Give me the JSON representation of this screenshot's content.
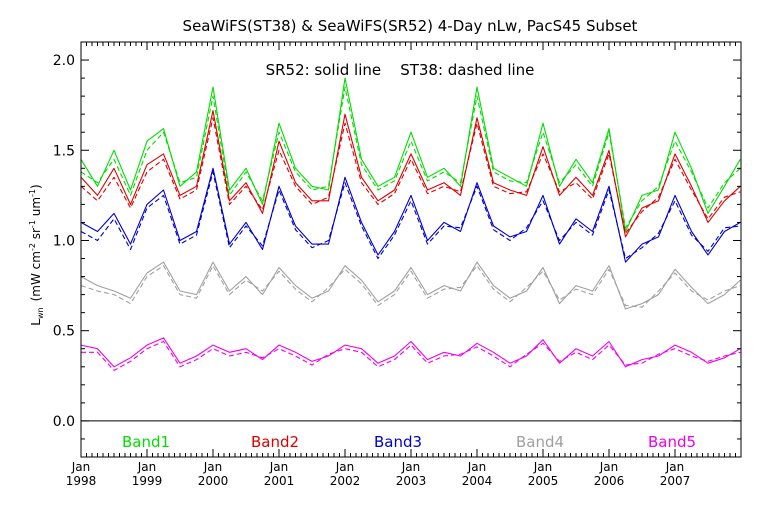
{
  "chart_data": {
    "type": "line",
    "title": "SeaWiFS(ST38) & SeaWiFS(SR52) 4-Day nLw, PacS45 Subset",
    "annotation": "SR52: solid line    ST38: dashed line",
    "ylabel_main": "L",
    "ylabel_sub": "wn",
    "ylabel_units": "(mW cm",
    "ylabel_units_rest": " sr",
    "ylabel_units_tail": " um",
    "ylabel_sup": "-2",
    "ylabel_sup2": "-1",
    "ylabel_sup3": "-1",
    "ylabel_close": ")",
    "xlim": [
      1998.0,
      2008.0
    ],
    "ylim": [
      -0.2,
      2.1
    ],
    "yticks": [
      0.0,
      0.5,
      1.0,
      1.5,
      2.0
    ],
    "ytick_labels": [
      "0.0",
      "0.5",
      "1.0",
      "1.5",
      "2.0"
    ],
    "xtick_values": [
      1998,
      1999,
      2000,
      2001,
      2002,
      2003,
      2004,
      2005,
      2006,
      2007
    ],
    "xtick_month": "Jan",
    "xtick_years": [
      "1998",
      "1999",
      "2000",
      "2001",
      "2002",
      "2003",
      "2004",
      "2005",
      "2006",
      "2007"
    ],
    "reference_line_y": 0.0,
    "line_styles": {
      "SR52": "solid",
      "ST38": "dashed"
    },
    "legend": [
      {
        "label": "Band1",
        "color": "#00dd00"
      },
      {
        "label": "Band2",
        "color": "#dd0000"
      },
      {
        "label": "Band3",
        "color": "#0000cc"
      },
      {
        "label": "Band4",
        "color": "#a0a0a0"
      },
      {
        "label": "Band5",
        "color": "#ee00ee"
      }
    ],
    "x": [
      1998.0,
      1998.25,
      1998.5,
      1998.75,
      1999.0,
      1999.25,
      1999.5,
      1999.75,
      2000.0,
      2000.25,
      2000.5,
      2000.75,
      2001.0,
      2001.25,
      2001.5,
      2001.75,
      2002.0,
      2002.25,
      2002.5,
      2002.75,
      2003.0,
      2003.25,
      2003.5,
      2003.75,
      2004.0,
      2004.25,
      2004.5,
      2004.75,
      2005.0,
      2005.25,
      2005.5,
      2005.75,
      2006.0,
      2006.25,
      2006.5,
      2006.75,
      2007.0,
      2007.25,
      2007.5,
      2007.75,
      2007.99
    ],
    "series": [
      {
        "name": "Band1",
        "color": "#00dd00",
        "solid": [
          1.45,
          1.3,
          1.5,
          1.28,
          1.55,
          1.62,
          1.3,
          1.38,
          1.85,
          1.28,
          1.4,
          1.2,
          1.65,
          1.4,
          1.3,
          1.28,
          1.9,
          1.45,
          1.3,
          1.35,
          1.6,
          1.35,
          1.4,
          1.3,
          1.85,
          1.4,
          1.35,
          1.3,
          1.65,
          1.3,
          1.45,
          1.32,
          1.62,
          1.05,
          1.25,
          1.28,
          1.6,
          1.4,
          1.15,
          1.3,
          1.45
        ],
        "dashed": [
          1.38,
          1.32,
          1.45,
          1.25,
          1.5,
          1.6,
          1.32,
          1.35,
          1.8,
          1.25,
          1.38,
          1.22,
          1.6,
          1.38,
          1.28,
          1.3,
          1.85,
          1.42,
          1.28,
          1.33,
          1.55,
          1.33,
          1.38,
          1.32,
          1.8,
          1.38,
          1.33,
          1.32,
          1.6,
          1.32,
          1.42,
          1.3,
          1.6,
          1.07,
          1.22,
          1.3,
          1.55,
          1.38,
          1.18,
          1.32,
          1.4
        ]
      },
      {
        "name": "Band2",
        "color": "#dd0000",
        "solid": [
          1.35,
          1.25,
          1.4,
          1.2,
          1.42,
          1.48,
          1.25,
          1.3,
          1.72,
          1.22,
          1.32,
          1.15,
          1.55,
          1.32,
          1.22,
          1.22,
          1.7,
          1.35,
          1.22,
          1.28,
          1.48,
          1.28,
          1.32,
          1.25,
          1.68,
          1.32,
          1.28,
          1.25,
          1.52,
          1.25,
          1.35,
          1.25,
          1.5,
          1.02,
          1.18,
          1.22,
          1.48,
          1.3,
          1.1,
          1.22,
          1.3
        ],
        "dashed": [
          1.3,
          1.22,
          1.35,
          1.18,
          1.38,
          1.45,
          1.23,
          1.28,
          1.68,
          1.2,
          1.3,
          1.17,
          1.5,
          1.3,
          1.2,
          1.24,
          1.65,
          1.32,
          1.2,
          1.26,
          1.45,
          1.26,
          1.3,
          1.27,
          1.65,
          1.3,
          1.26,
          1.27,
          1.48,
          1.27,
          1.32,
          1.23,
          1.48,
          1.04,
          1.16,
          1.24,
          1.45,
          1.28,
          1.12,
          1.24,
          1.27
        ]
      },
      {
        "name": "Band3",
        "color": "#0000cc",
        "solid": [
          1.1,
          1.05,
          1.15,
          0.98,
          1.2,
          1.28,
          1.0,
          1.05,
          1.4,
          0.98,
          1.1,
          0.95,
          1.3,
          1.08,
          0.98,
          0.98,
          1.35,
          1.1,
          0.92,
          1.05,
          1.25,
          1.0,
          1.1,
          1.05,
          1.32,
          1.08,
          1.02,
          1.05,
          1.25,
          0.98,
          1.12,
          1.05,
          1.3,
          0.88,
          0.98,
          1.02,
          1.25,
          1.05,
          0.92,
          1.05,
          1.1
        ],
        "dashed": [
          1.05,
          1.0,
          1.12,
          0.95,
          1.18,
          1.25,
          0.98,
          1.03,
          1.38,
          0.96,
          1.08,
          0.97,
          1.28,
          1.06,
          0.96,
          1.0,
          1.32,
          1.08,
          0.9,
          1.03,
          1.22,
          0.98,
          1.08,
          1.07,
          1.3,
          1.06,
          1.0,
          1.07,
          1.22,
          1.0,
          1.1,
          1.03,
          1.28,
          0.9,
          0.96,
          1.04,
          1.22,
          1.03,
          0.94,
          1.07,
          1.08
        ]
      },
      {
        "name": "Band4",
        "color": "#a0a0a0",
        "solid": [
          0.8,
          0.75,
          0.72,
          0.68,
          0.82,
          0.88,
          0.72,
          0.7,
          0.88,
          0.72,
          0.8,
          0.7,
          0.85,
          0.75,
          0.68,
          0.72,
          0.86,
          0.78,
          0.66,
          0.72,
          0.85,
          0.7,
          0.75,
          0.72,
          0.88,
          0.75,
          0.68,
          0.72,
          0.85,
          0.65,
          0.75,
          0.72,
          0.86,
          0.62,
          0.65,
          0.7,
          0.84,
          0.74,
          0.65,
          0.7,
          0.78
        ],
        "dashed": [
          0.75,
          0.72,
          0.7,
          0.65,
          0.8,
          0.86,
          0.7,
          0.68,
          0.86,
          0.7,
          0.78,
          0.72,
          0.83,
          0.73,
          0.66,
          0.74,
          0.84,
          0.76,
          0.64,
          0.7,
          0.83,
          0.68,
          0.73,
          0.74,
          0.86,
          0.73,
          0.66,
          0.74,
          0.83,
          0.67,
          0.73,
          0.7,
          0.84,
          0.64,
          0.63,
          0.72,
          0.82,
          0.72,
          0.67,
          0.72,
          0.75
        ]
      },
      {
        "name": "Band5",
        "color": "#ee00ee",
        "solid": [
          0.42,
          0.4,
          0.3,
          0.35,
          0.42,
          0.46,
          0.32,
          0.36,
          0.42,
          0.38,
          0.4,
          0.34,
          0.42,
          0.38,
          0.33,
          0.36,
          0.42,
          0.4,
          0.32,
          0.36,
          0.44,
          0.34,
          0.38,
          0.36,
          0.43,
          0.38,
          0.32,
          0.36,
          0.45,
          0.32,
          0.4,
          0.36,
          0.44,
          0.3,
          0.34,
          0.36,
          0.42,
          0.38,
          0.32,
          0.35,
          0.4
        ],
        "dashed": [
          0.38,
          0.38,
          0.28,
          0.33,
          0.4,
          0.44,
          0.3,
          0.34,
          0.4,
          0.36,
          0.38,
          0.35,
          0.4,
          0.36,
          0.31,
          0.37,
          0.4,
          0.38,
          0.3,
          0.34,
          0.42,
          0.32,
          0.36,
          0.37,
          0.41,
          0.36,
          0.3,
          0.37,
          0.43,
          0.33,
          0.38,
          0.34,
          0.42,
          0.31,
          0.32,
          0.37,
          0.4,
          0.36,
          0.33,
          0.36,
          0.38
        ]
      }
    ]
  }
}
